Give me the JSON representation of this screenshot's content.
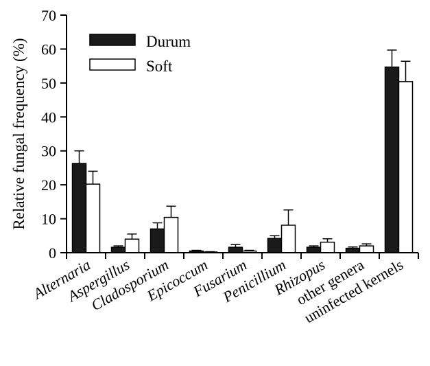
{
  "chart_data": {
    "type": "bar",
    "xlabel": "",
    "ylabel": "Relative fungal frequency (%)",
    "ylim": [
      0,
      70
    ],
    "yticks": [
      0,
      10,
      20,
      30,
      40,
      50,
      60,
      70
    ],
    "grid": false,
    "legend_position": "top-left",
    "categories": [
      {
        "label": "Alternaria",
        "italic": true
      },
      {
        "label": "Aspergillus",
        "italic": true
      },
      {
        "label": "Cladosporium",
        "italic": true
      },
      {
        "label": "Epicoccum",
        "italic": true
      },
      {
        "label": "Fusarium",
        "italic": true
      },
      {
        "label": "Penicillium",
        "italic": true
      },
      {
        "label": "Rhizopus",
        "italic": true
      },
      {
        "label": "other genera",
        "italic": false
      },
      {
        "label": "uninfected kernels",
        "italic": false
      }
    ],
    "series": [
      {
        "name": "Durum",
        "color": "#1a1a1a",
        "values": [
          26.3,
          1.6,
          7.0,
          0.5,
          1.6,
          4.2,
          1.6,
          1.3,
          54.7
        ],
        "errors": [
          3.7,
          0.4,
          1.8,
          0.2,
          0.8,
          0.8,
          0.4,
          0.4,
          5.0
        ]
      },
      {
        "name": "Soft",
        "color": "#ffffff",
        "values": [
          20.2,
          4.0,
          10.4,
          0.2,
          0.5,
          8.1,
          3.1,
          2.0,
          50.4
        ],
        "errors": [
          3.8,
          1.5,
          3.3,
          0.1,
          0.2,
          4.5,
          1.0,
          0.6,
          6.0
        ]
      }
    ]
  }
}
